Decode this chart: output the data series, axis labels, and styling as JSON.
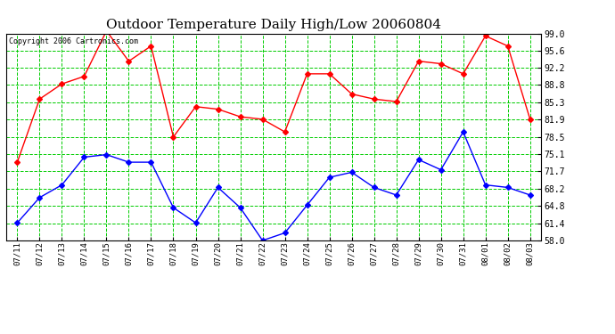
{
  "title": "Outdoor Temperature Daily High/Low 20060804",
  "copyright": "Copyright 2006 Cartronics.com",
  "x_labels": [
    "07/11",
    "07/12",
    "07/13",
    "07/14",
    "07/15",
    "07/16",
    "07/17",
    "07/18",
    "07/19",
    "07/20",
    "07/21",
    "07/22",
    "07/23",
    "07/24",
    "07/25",
    "07/26",
    "07/27",
    "07/28",
    "07/29",
    "07/30",
    "07/31",
    "08/01",
    "08/02",
    "08/03"
  ],
  "high_temps": [
    73.5,
    86.0,
    89.0,
    90.5,
    99.5,
    93.5,
    96.5,
    78.5,
    84.5,
    84.0,
    82.5,
    82.0,
    79.5,
    91.0,
    91.0,
    87.0,
    86.0,
    85.5,
    93.5,
    93.0,
    91.0,
    98.5,
    96.5,
    82.0
  ],
  "low_temps": [
    61.5,
    66.5,
    69.0,
    74.5,
    75.0,
    73.5,
    73.5,
    64.5,
    61.5,
    68.5,
    64.5,
    58.0,
    59.5,
    65.0,
    70.5,
    71.5,
    68.5,
    67.0,
    74.0,
    72.0,
    79.5,
    69.0,
    68.5,
    67.0
  ],
  "high_color": "#ff0000",
  "low_color": "#0000ff",
  "bg_color": "#ffffff",
  "plot_bg_color": "#ffffff",
  "grid_color": "#00cc00",
  "title_fontsize": 11,
  "copyright_fontsize": 6,
  "ylim_min": 58.0,
  "ylim_max": 99.0,
  "yticks": [
    58.0,
    61.4,
    64.8,
    68.2,
    71.7,
    75.1,
    78.5,
    81.9,
    85.3,
    88.8,
    92.2,
    95.6,
    99.0
  ]
}
